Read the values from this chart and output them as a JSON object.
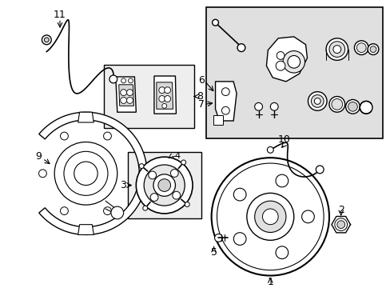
{
  "bg_color": "#ffffff",
  "line_color": "#000000",
  "fig_width": 4.89,
  "fig_height": 3.6,
  "dpi": 100,
  "gray_box_color": "#d8d8d8",
  "white_box_color": "#ffffff",
  "component_gray": "#c8c8c8"
}
